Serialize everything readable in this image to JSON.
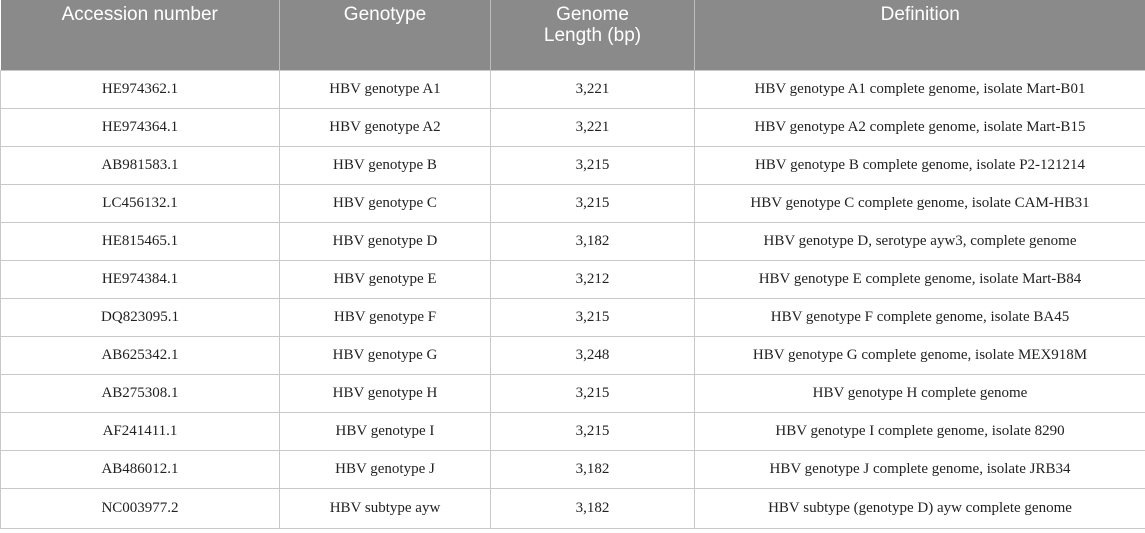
{
  "table": {
    "headers": [
      "Accession number",
      "Genotype",
      "Genome Length (bp)",
      "Definition"
    ],
    "header_lines": {
      "genome_length": [
        "Genome",
        "Length (bp)"
      ]
    },
    "rows": [
      [
        "HE974362.1",
        "HBV genotype A1",
        "3,221",
        "HBV genotype A1 complete genome, isolate Mart-B01"
      ],
      [
        "HE974364.1",
        "HBV genotype A2",
        "3,221",
        "HBV genotype A2 complete genome, isolate Mart-B15"
      ],
      [
        "AB981583.1",
        "HBV genotype B",
        "3,215",
        "HBV genotype B complete genome, isolate P2-121214"
      ],
      [
        "LC456132.1",
        "HBV genotype C",
        "3,215",
        "HBV genotype C complete genome, isolate CAM-HB31"
      ],
      [
        "HE815465.1",
        "HBV genotype D",
        "3,182",
        "HBV genotype D, serotype ayw3, complete genome"
      ],
      [
        "HE974384.1",
        "HBV genotype E",
        "3,212",
        "HBV genotype E complete genome, isolate Mart-B84"
      ],
      [
        "DQ823095.1",
        "HBV genotype F",
        "3,215",
        "HBV genotype F complete genome, isolate BA45"
      ],
      [
        "AB625342.1",
        "HBV genotype G",
        "3,248",
        "HBV genotype G complete genome, isolate MEX918M"
      ],
      [
        "AB275308.1",
        "HBV genotype H",
        "3,215",
        "HBV genotype H complete genome"
      ],
      [
        "AF241411.1",
        "HBV genotype I",
        "3,215",
        "HBV genotype I complete genome, isolate 8290"
      ],
      [
        "AB486012.1",
        "HBV genotype J",
        "3,182",
        "HBV genotype J complete genome, isolate JRB34"
      ],
      [
        "NC003977.2",
        "HBV subtype ayw",
        "3,182",
        "HBV subtype (genotype D) ayw complete genome"
      ]
    ]
  },
  "colors": {
    "header_background": "#8a8a8a",
    "header_text": "#ffffff",
    "cell_border": "#c8c8c8",
    "cell_text": "#222222"
  }
}
